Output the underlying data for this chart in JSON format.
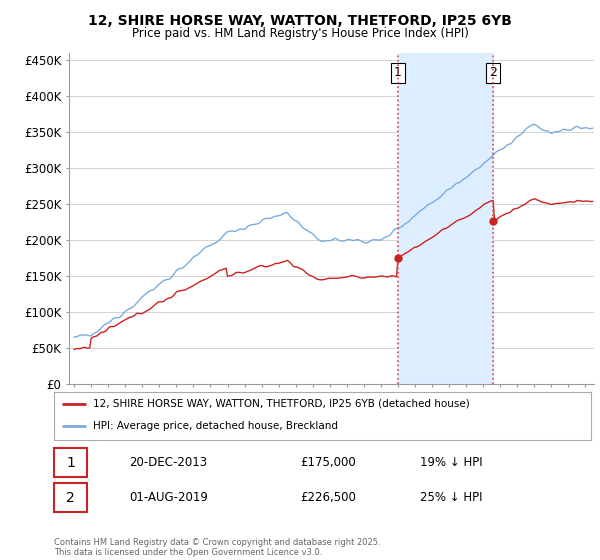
{
  "title_line1": "12, SHIRE HORSE WAY, WATTON, THETFORD, IP25 6YB",
  "title_line2": "Price paid vs. HM Land Registry's House Price Index (HPI)",
  "yticks": [
    0,
    50000,
    100000,
    150000,
    200000,
    250000,
    300000,
    350000,
    400000,
    450000
  ],
  "ytick_labels": [
    "£0",
    "£50K",
    "£100K",
    "£150K",
    "£200K",
    "£250K",
    "£300K",
    "£350K",
    "£400K",
    "£450K"
  ],
  "hpi_color": "#7aacdc",
  "price_color": "#cc2222",
  "vline_color": "#dd4444",
  "shade_color": "#ddeeff",
  "background_color": "#ffffff",
  "grid_color": "#cccccc",
  "purchase1_date_num": 2014.0,
  "purchase1_label": "1",
  "purchase1_date_str": "20-DEC-2013",
  "purchase1_price": "£175,000",
  "purchase1_price_val": 175000,
  "purchase1_hpi_str": "19% ↓ HPI",
  "purchase2_date_num": 2019.58,
  "purchase2_label": "2",
  "purchase2_date_str": "01-AUG-2019",
  "purchase2_price": "£226,500",
  "purchase2_price_val": 226500,
  "purchase2_hpi_str": "25% ↓ HPI",
  "legend_line1": "12, SHIRE HORSE WAY, WATTON, THETFORD, IP25 6YB (detached house)",
  "legend_line2": "HPI: Average price, detached house, Breckland",
  "footnote": "Contains HM Land Registry data © Crown copyright and database right 2025.\nThis data is licensed under the Open Government Licence v3.0.",
  "xlim_start": 1994.7,
  "xlim_end": 2025.5,
  "ylim_min": 0,
  "ylim_max": 460000
}
